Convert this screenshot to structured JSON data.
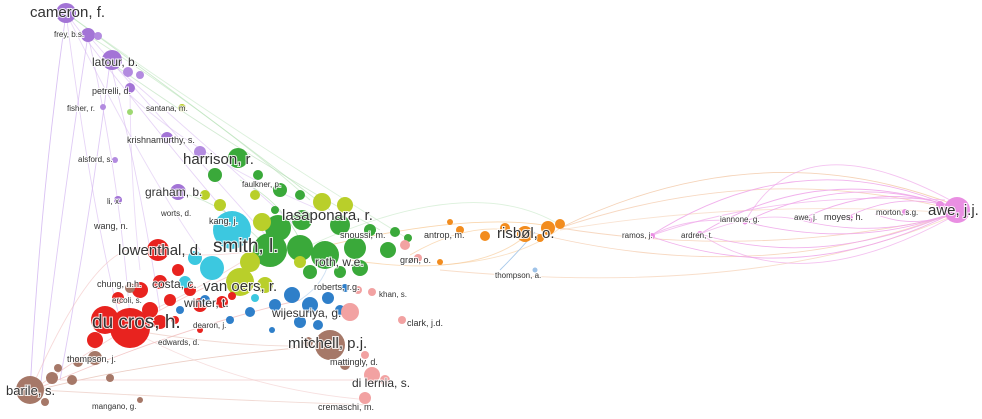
{
  "network": {
    "colors": {
      "red": "#e8231f",
      "green": "#3aa93a",
      "blue": "#2f7fc9",
      "yellow_green": "#b9cf2a",
      "purple": "#a374d6",
      "orange": "#f28c1e",
      "pink": "#e98fe2",
      "brown": "#a67868",
      "cyan": "#3cc8e0",
      "salmon": "#f2a2a2"
    },
    "authors": {
      "cameron": "cameron, f.",
      "frey": "frey, b.s.",
      "latour": "latour, b.",
      "petrelli": "petrelli, d.",
      "fisher": "fisher, r.",
      "santana": "santana, m.",
      "krishnamurthy": "krishnamurthy, s.",
      "alsford": "alsford, s.",
      "harrison": "harrison, r.",
      "faulkner": "faulkner, p.",
      "graham": "graham, b.",
      "li": "li, x.",
      "worts": "worts, d.",
      "wang": "wang, n.",
      "kang": "kang, j.",
      "lasaponara": "lasaponara, r.",
      "snoussi": "snoussi, m.",
      "smith": "smith, l.",
      "lowenthal": "lowenthal, d.",
      "antrop": "antrop, m.",
      "risbol": "risbøl, o.",
      "roth": "roth, w.e.",
      "gron": "grøn, o.",
      "ramos": "ramos, j.",
      "ardren": "ardren, t.",
      "iannone": "iannone, g.",
      "awe_j": "awe, j.",
      "moyes": "moyes, h.",
      "morton": "morton, s.g.",
      "awe_jj": "awe, j.j.",
      "thompson_a": "thompson, a.",
      "chung": "chung, n.h.",
      "costa": "costa, c.",
      "van_oers": "van oers, r.",
      "ercoli": "ercoli, s.",
      "winter": "winter, t.",
      "roberts": "roberts, r.g.",
      "khan": "khan, s.",
      "du_cros": "du cros, h.",
      "wijesuriya": "wijesuriya, g.",
      "dearon": "dearon, j.",
      "clark": "clark, j.d.",
      "edwards": "edwards, d.",
      "mitchell": "mitchell, p.j.",
      "thompson_j": "thompson, j.",
      "mattingly": "mattingly, d.",
      "di_lernia": "di lernia, s.",
      "barile": "barile, s.",
      "mangano": "mangano, g.",
      "cremaschi": "cremaschi, m."
    }
  }
}
